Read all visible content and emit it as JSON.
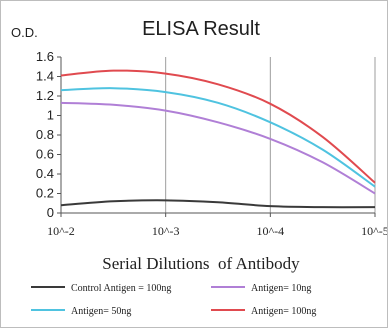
{
  "chart_data": {
    "type": "line",
    "title": "ELISA Result",
    "ylabel": "O.D.",
    "xlabel": "Serial Dilutions  of Antibody",
    "x": [
      "10^-2",
      "10^-2.5",
      "10^-3",
      "10^-3.5",
      "10^-4",
      "10^-4.5",
      "10^-5"
    ],
    "x_tick_labels": [
      "10^-2",
      "10^-3",
      "10^-4",
      "10^-5"
    ],
    "ylim": [
      0,
      1.6
    ],
    "y_tick_labels": [
      "0",
      "0.2",
      "0.4",
      "0.6",
      "0.8",
      "1",
      "1.2",
      "1.4",
      "1.6"
    ],
    "grid": "vertical",
    "legend_position": "bottom",
    "series": [
      {
        "name": "Control Antigen = 100ng",
        "color": "#3a3a3a",
        "values": [
          0.08,
          0.12,
          0.13,
          0.11,
          0.07,
          0.06,
          0.06
        ]
      },
      {
        "name": "Antigen= 10ng",
        "color": "#b07fd6",
        "values": [
          1.13,
          1.11,
          1.05,
          0.93,
          0.76,
          0.52,
          0.2
        ]
      },
      {
        "name": "Antigen= 50ng",
        "color": "#4fc3e0",
        "values": [
          1.26,
          1.28,
          1.24,
          1.13,
          0.93,
          0.65,
          0.27
        ]
      },
      {
        "name": "Antigen= 100ng",
        "color": "#e04a4f",
        "values": [
          1.41,
          1.46,
          1.43,
          1.32,
          1.12,
          0.78,
          0.31
        ]
      }
    ]
  }
}
